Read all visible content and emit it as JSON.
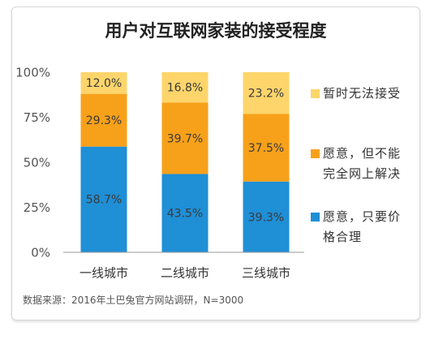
{
  "source": "数据来源：2016年土巴兔官方网站调研，N=3000",
  "chart_data": {
    "type": "bar",
    "stacked": true,
    "title": "用户对互联网家装的接受程度",
    "xlabel": "",
    "ylabel": "",
    "categories": [
      "一线城市",
      "二线城市",
      "三线城市"
    ],
    "series": [
      {
        "name": "愿意，只要价格合理",
        "values": [
          58.7,
          43.5,
          39.3
        ],
        "color": "#1f8fd6"
      },
      {
        "name": "愿意，但不能完全网上解决",
        "values": [
          29.3,
          39.7,
          37.5
        ],
        "color": "#f7a11a"
      },
      {
        "name": "暂时无法接受",
        "values": [
          12.0,
          16.8,
          23.2
        ],
        "color": "#fdd56b"
      }
    ],
    "ylim": [
      0,
      100
    ],
    "yticks": [
      0,
      25,
      50,
      75,
      100
    ],
    "ytick_labels": [
      "0%",
      "25%",
      "50%",
      "75%",
      "100%"
    ],
    "grid": false,
    "legend": "right"
  }
}
